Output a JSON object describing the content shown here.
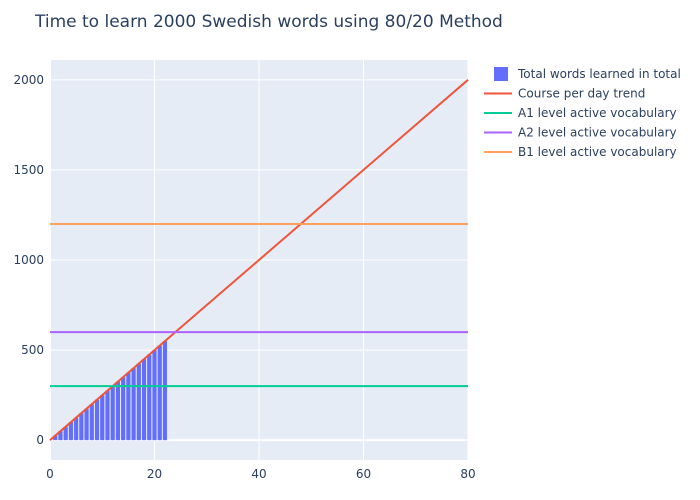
{
  "chart_data": {
    "type": "bar",
    "title": "Time to learn 2000 Swedish words using 80/20 Method",
    "xlabel": "",
    "ylabel": "",
    "xlim": [
      0,
      80
    ],
    "ylim": [
      -110,
      2110
    ],
    "x_ticks": [
      0,
      20,
      40,
      60,
      80
    ],
    "y_ticks": [
      0,
      500,
      1000,
      1500,
      2000
    ],
    "grid": true,
    "legend_position": "top-right",
    "bar_series": {
      "name": "Total words learned in total",
      "color": "#636efa",
      "x": [
        1,
        2,
        3,
        4,
        5,
        6,
        7,
        8,
        9,
        10,
        11,
        12,
        13,
        14,
        15,
        16,
        17,
        18,
        19,
        20,
        21,
        22
      ],
      "values": [
        25,
        50,
        75,
        100,
        125,
        150,
        175,
        200,
        225,
        250,
        275,
        300,
        325,
        350,
        375,
        400,
        425,
        450,
        475,
        500,
        525,
        550
      ]
    },
    "line_series": [
      {
        "name": "Course per day trend",
        "color": "#ef553b",
        "x": [
          0,
          80
        ],
        "y": [
          0,
          2000
        ]
      },
      {
        "name": "A1 level active vocabulary",
        "color": "#00cc96",
        "x": [
          0,
          80
        ],
        "y": [
          300,
          300
        ]
      },
      {
        "name": "A2 level active vocabulary",
        "color": "#ab63fa",
        "x": [
          0,
          80
        ],
        "y": [
          600,
          600
        ]
      },
      {
        "name": "B1 level active vocabulary",
        "color": "#ffa15a",
        "x": [
          0,
          80
        ],
        "y": [
          1200,
          1200
        ]
      }
    ]
  }
}
